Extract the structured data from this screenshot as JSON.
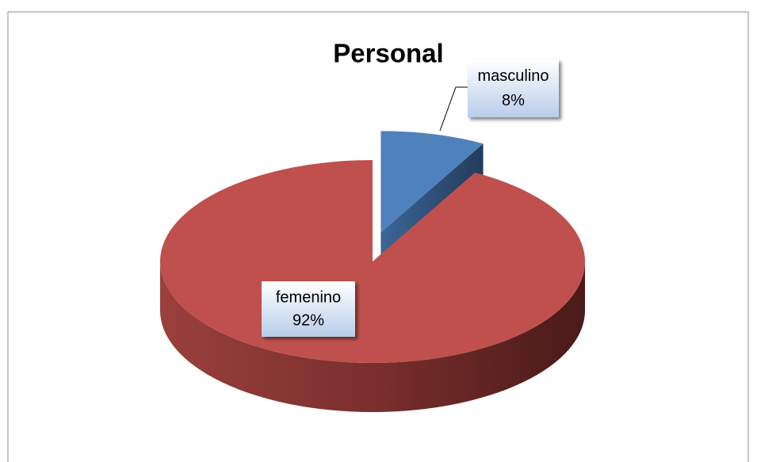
{
  "chart_data": {
    "type": "pie",
    "title": "Personal",
    "categories": [
      "masculino",
      "femenino"
    ],
    "values": [
      8,
      92
    ],
    "value_labels": [
      "8%",
      "92%"
    ],
    "colors": [
      "#4f81bd",
      "#c0504d"
    ]
  }
}
